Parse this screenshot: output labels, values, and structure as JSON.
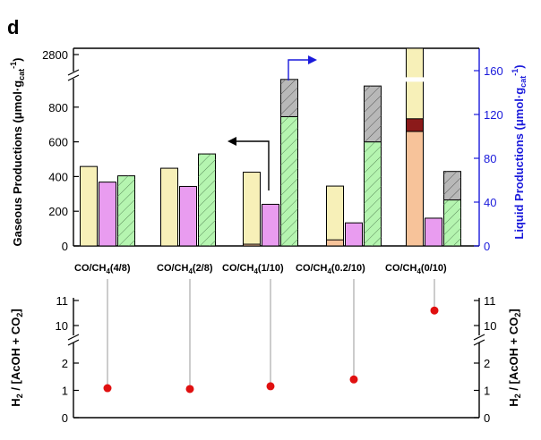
{
  "panel_label": "d",
  "chart_data": [
    {
      "type": "bar",
      "title": "",
      "categories": [
        "CO/CH4(4/8)",
        "CO/CH4(2/8)",
        "CO/CH4(1/10)",
        "CO/CH4(0.2/10)",
        "CO/CH4(0/10)"
      ],
      "category_labels": [
        {
          "main": "CO/CH",
          "sub": "4",
          "tail": "(4/8)"
        },
        {
          "main": "CO/CH",
          "sub": "4",
          "tail": "(2/8)"
        },
        {
          "main": "CO/CH",
          "sub": "4",
          "tail": "(1/10)"
        },
        {
          "main": "CO/CH",
          "sub": "4",
          "tail": "(0.2/10)"
        },
        {
          "main": "CO/CH",
          "sub": "4",
          "tail": "(0/10)"
        }
      ],
      "ylabel": "Gaseous Productions (μmol·g_cat^-1)",
      "ylabel_parts": {
        "main": "Gaseous Productions (",
        "mu": "μ",
        "mid": "mol·g",
        "sub": "cat",
        "sup": "-1",
        "close": ")"
      },
      "y_ticks": [
        0,
        200,
        400,
        600,
        800,
        2800
      ],
      "y_axis_break": [
        900,
        2700
      ],
      "ylabel_right": "Liquid Productions (μmol·g_cat^-1)",
      "ylabel_right_parts": {
        "main": "Liquid Productions (",
        "mu": "μ",
        "mid": "mol·g",
        "sub": "cat",
        "sup": "-1",
        "close": ")"
      },
      "y_right_ticks": [
        0,
        40,
        80,
        120,
        160
      ],
      "ylim_right": [
        0,
        178
      ],
      "colors": {
        "yellow": "#f7f0b8",
        "dark_stack": "#8b1a1a",
        "orange": "#f7c39a",
        "pink": "#e99cf0",
        "green": "#b5f5b0",
        "grey": "#b8b8b8",
        "right_axis": "#1a1adb"
      },
      "series": [
        {
          "axis": "left",
          "values": [
            458,
            448,
            425,
            345,
            2850
          ],
          "stack_bottom": [
            0,
            0,
            10,
            35,
            660
          ],
          "stack_mid": [
            0,
            0,
            0,
            0,
            73
          ]
        },
        {
          "axis": "left",
          "values": [
            368,
            343,
            240,
            133,
            160
          ]
        },
        {
          "axis": "right",
          "values": [
            64,
            84,
            118,
            95,
            42
          ],
          "stack_top": [
            0,
            0,
            152,
            146,
            68
          ]
        }
      ]
    },
    {
      "type": "scatter",
      "categories": [
        "CO/CH4(4/8)",
        "CO/CH4(2/8)",
        "CO/CH4(1/10)",
        "CO/CH4(0.2/10)",
        "CO/CH4(0/10)"
      ],
      "ylabel": "H2 / [AcOH + CO2]",
      "ylabel_parts": {
        "a": "H",
        "sub": "2",
        "b": " / [AcOH + CO",
        "sub2": "2",
        "c": "]"
      },
      "y_ticks": [
        0,
        1,
        2,
        10,
        11
      ],
      "y_axis_break": [
        3,
        9.5
      ],
      "values": [
        1.08,
        1.05,
        1.15,
        1.4,
        10.6
      ],
      "marker_color": "#e01010"
    }
  ]
}
